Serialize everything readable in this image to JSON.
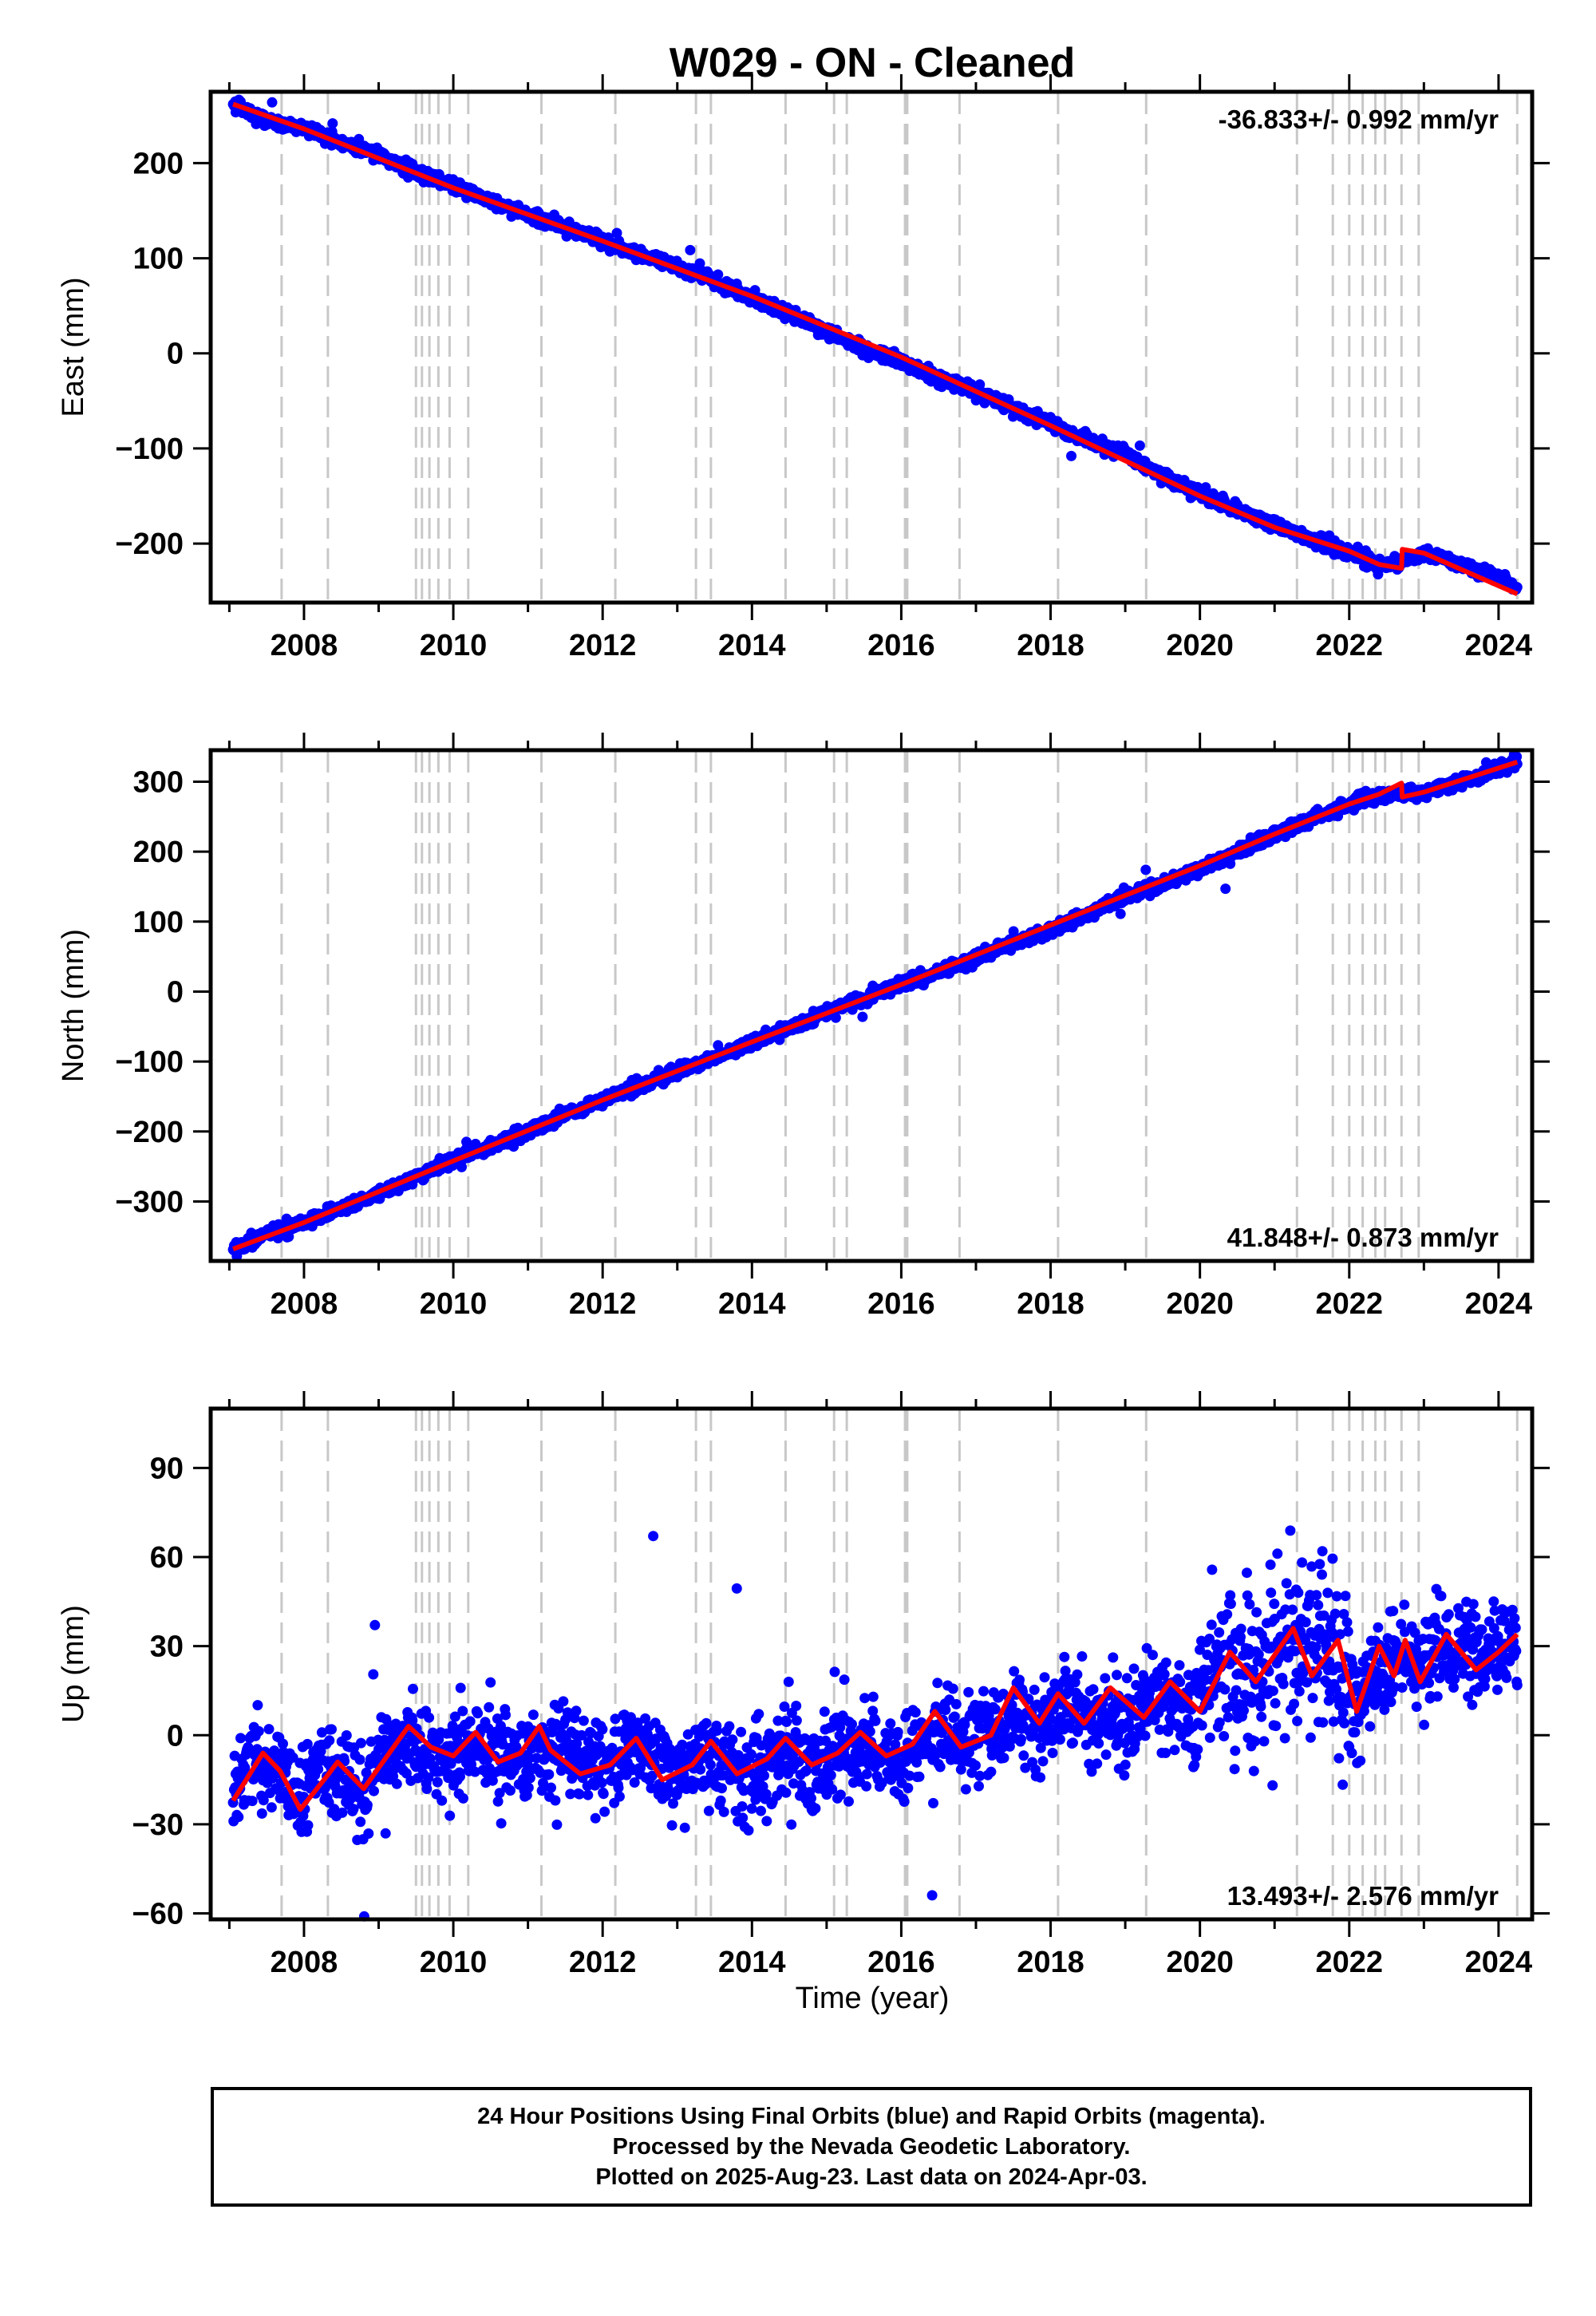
{
  "title": "W029  - ON - Cleaned",
  "xlabel": "Time (year)",
  "footer": {
    "line1": "24 Hour Positions Using Final Orbits (blue) and Rapid Orbits (magenta).",
    "line2": "Processed by the Nevada Geodetic Laboratory.",
    "line3": "Plotted on 2025-Aug-23. Last data on 2024-Apr-03."
  },
  "colors": {
    "final": "#0000ff",
    "model": "#ff0000",
    "steps": "#c8c8c8",
    "axis": "#000000"
  },
  "chart_data": [
    {
      "type": "scatter",
      "ylabel": "East (mm)",
      "rate": "-36.833+/- 0.992 mm/yr",
      "xlim": [
        2006.75,
        2024.45
      ],
      "ylim": [
        -262,
        275
      ],
      "yticks": [
        -200,
        -100,
        0,
        100,
        200
      ],
      "xticks": [
        2008,
        2010,
        2012,
        2014,
        2016,
        2018,
        2020,
        2022,
        2024
      ],
      "grid": false,
      "series": [
        {
          "role": "data",
          "x": [
            2007.05,
            2007.5,
            2008.0,
            2008.5,
            2009.0,
            2009.5,
            2010.0,
            2010.5,
            2011.0,
            2011.5,
            2012.0,
            2012.5,
            2013.0,
            2013.5,
            2014.0,
            2014.5,
            2015.0,
            2015.5,
            2016.0,
            2016.5,
            2017.0,
            2017.5,
            2018.0,
            2018.5,
            2019.0,
            2019.5,
            2020.0,
            2020.5,
            2021.0,
            2021.5,
            2022.0,
            2022.5,
            2023.0,
            2023.5,
            2024.0,
            2024.25
          ],
          "y": [
            262,
            245,
            237,
            222,
            208,
            190,
            176,
            160,
            146,
            133,
            118,
            103,
            92,
            75,
            58,
            42,
            24,
            4,
            -8,
            -26,
            -40,
            -58,
            -74,
            -92,
            -106,
            -128,
            -147,
            -166,
            -180,
            -196,
            -210,
            -224,
            -210,
            -222,
            -236,
            -248
          ]
        },
        {
          "role": "model",
          "x": [
            2007.05,
            2008.0,
            2010.0,
            2012.0,
            2014.0,
            2016.0,
            2018.0,
            2020.0,
            2021.0,
            2022.0,
            2022.4,
            2022.7,
            2022.71,
            2023.0,
            2024.25
          ],
          "y": [
            262,
            236,
            174,
            118,
            60,
            -4,
            -76,
            -150,
            -183,
            -208,
            -222,
            -226,
            -206,
            -210,
            -253
          ]
        }
      ]
    },
    {
      "type": "scatter",
      "ylabel": "North (mm)",
      "rate": "41.848+/- 0.873 mm/yr",
      "xlim": [
        2006.75,
        2024.45
      ],
      "ylim": [
        -385,
        345
      ],
      "yticks": [
        -300,
        -200,
        -100,
        0,
        100,
        200,
        300
      ],
      "xticks": [
        2008,
        2010,
        2012,
        2014,
        2016,
        2018,
        2020,
        2022,
        2024
      ],
      "grid": false,
      "series": [
        {
          "role": "data",
          "x": [
            2007.05,
            2007.5,
            2008.0,
            2008.5,
            2009.0,
            2009.5,
            2010.0,
            2010.5,
            2011.0,
            2011.5,
            2012.0,
            2012.5,
            2013.0,
            2013.5,
            2014.0,
            2014.5,
            2015.0,
            2015.5,
            2016.0,
            2016.5,
            2017.0,
            2017.5,
            2018.0,
            2018.5,
            2019.0,
            2019.5,
            2020.0,
            2020.5,
            2021.0,
            2021.5,
            2022.0,
            2022.5,
            2023.0,
            2023.5,
            2024.0,
            2024.25
          ],
          "y": [
            -368,
            -345,
            -330,
            -310,
            -290,
            -265,
            -242,
            -220,
            -200,
            -175,
            -155,
            -135,
            -115,
            -95,
            -72,
            -52,
            -30,
            -8,
            10,
            28,
            48,
            68,
            88,
            110,
            135,
            155,
            175,
            200,
            225,
            248,
            268,
            282,
            285,
            300,
            318,
            330
          ]
        },
        {
          "role": "model",
          "x": [
            2007.05,
            2008.0,
            2010.0,
            2012.0,
            2014.0,
            2016.0,
            2018.0,
            2020.0,
            2021.0,
            2022.0,
            2022.4,
            2022.7,
            2022.71,
            2023.0,
            2024.25
          ],
          "y": [
            -368,
            -330,
            -242,
            -155,
            -72,
            10,
            95,
            180,
            225,
            268,
            282,
            298,
            278,
            285,
            328
          ]
        }
      ]
    },
    {
      "type": "scatter",
      "ylabel": "Up (mm)",
      "rate": "13.493+/- 2.576 mm/yr",
      "xlim": [
        2006.75,
        2024.45
      ],
      "ylim": [
        -62,
        110
      ],
      "yticks": [
        -60,
        -30,
        0,
        30,
        60,
        90
      ],
      "xticks": [
        2008,
        2010,
        2012,
        2014,
        2016,
        2018,
        2020,
        2022,
        2024
      ],
      "grid": false,
      "series": [
        {
          "role": "data",
          "x": [
            2007.05,
            2007.3,
            2007.6,
            2007.9,
            2008.2,
            2008.5,
            2008.8,
            2009.1,
            2009.4,
            2009.7,
            2010.0,
            2010.3,
            2010.6,
            2010.9,
            2011.2,
            2011.5,
            2011.8,
            2012.1,
            2012.4,
            2012.7,
            2013.0,
            2013.3,
            2013.6,
            2013.9,
            2014.2,
            2014.5,
            2014.8,
            2015.1,
            2015.4,
            2015.7,
            2016.0,
            2016.3,
            2016.6,
            2016.9,
            2017.2,
            2017.5,
            2017.8,
            2018.1,
            2018.4,
            2018.7,
            2019.0,
            2019.3,
            2019.6,
            2019.9,
            2020.2,
            2020.5,
            2020.8,
            2021.1,
            2021.4,
            2021.7,
            2022.0,
            2022.3,
            2022.6,
            2022.9,
            2023.2,
            2023.5,
            2023.8,
            2024.1,
            2024.25
          ],
          "y": [
            -18,
            -8,
            -12,
            -22,
            -10,
            -15,
            -18,
            -8,
            0,
            -5,
            -6,
            -4,
            -8,
            -10,
            -3,
            -5,
            -12,
            -10,
            -4,
            -8,
            -12,
            -6,
            -10,
            -14,
            -8,
            -6,
            -12,
            -6,
            -4,
            -6,
            -8,
            -2,
            2,
            -4,
            2,
            6,
            2,
            8,
            10,
            4,
            6,
            14,
            10,
            8,
            22,
            28,
            22,
            26,
            32,
            28,
            10,
            18,
            25,
            22,
            30,
            28,
            26,
            30,
            32
          ]
        },
        {
          "role": "model",
          "x": [
            2007.05,
            2007.45,
            2007.68,
            2007.95,
            2008.3,
            2008.45,
            2008.8,
            2009.4,
            2009.7,
            2010.0,
            2010.3,
            2010.6,
            2010.9,
            2011.15,
            2011.3,
            2011.7,
            2012.1,
            2012.45,
            2012.8,
            2013.2,
            2013.45,
            2013.8,
            2014.2,
            2014.45,
            2014.8,
            2015.15,
            2015.45,
            2015.8,
            2016.15,
            2016.45,
            2016.8,
            2017.2,
            2017.5,
            2017.85,
            2018.1,
            2018.45,
            2018.8,
            2019.25,
            2019.6,
            2020.0,
            2020.4,
            2020.75,
            2021.25,
            2021.5,
            2021.85,
            2022.1,
            2022.4,
            2022.6,
            2022.75,
            2022.95,
            2023.3,
            2023.7,
            2024.0,
            2024.25
          ],
          "y": [
            -22,
            -6,
            -12,
            -25,
            -14,
            -9,
            -18,
            3,
            -4,
            -7,
            1,
            -9,
            -6,
            3,
            -5,
            -13,
            -10,
            -1,
            -15,
            -10,
            -2,
            -13,
            -8,
            -1,
            -10,
            -6,
            1,
            -7,
            -3,
            8,
            -4,
            0,
            16,
            4,
            14,
            4,
            16,
            6,
            18,
            8,
            28,
            18,
            36,
            20,
            32,
            8,
            30,
            20,
            32,
            18,
            34,
            22,
            28,
            34
          ]
        }
      ]
    }
  ],
  "steps": [
    2007.7,
    2008.32,
    2009.5,
    2009.58,
    2009.68,
    2009.8,
    2009.95,
    2010.2,
    2011.18,
    2012.17,
    2013.25,
    2013.45,
    2014.45,
    2015.1,
    2015.27,
    2016.05,
    2016.08,
    2016.78,
    2018.1,
    2019.28,
    2021.3,
    2021.78,
    2022.0,
    2022.18,
    2022.35,
    2022.48,
    2022.7,
    2022.93,
    2024.25
  ]
}
